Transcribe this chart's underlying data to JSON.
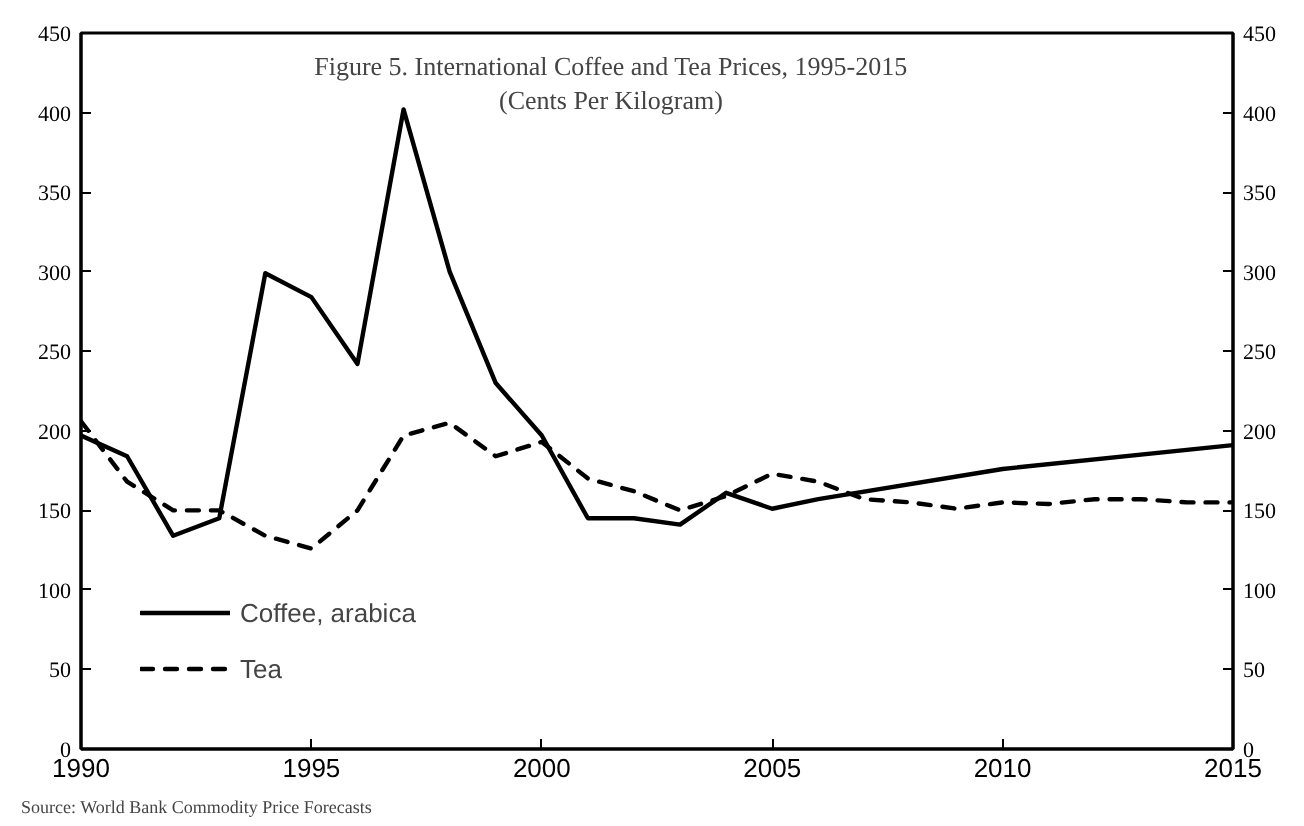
{
  "chart_data": {
    "type": "line",
    "title": "Figure 5. International Coffee and Tea Prices, 1995-2015",
    "subtitle": "(Cents Per Kilogram)",
    "annotations": [
      "Source: World Bank Commodity Price Forecasts"
    ],
    "series": [
      {
        "name": "Coffee, arabica",
        "color": "#000000",
        "line_style": "solid",
        "x": [
          1990,
          1991,
          1992,
          1993,
          1994,
          1995,
          1996,
          1997,
          1998,
          1999,
          2000,
          2001,
          2002,
          2003,
          2004,
          2005,
          2006,
          2010,
          2015
        ],
        "values": [
          197,
          184,
          134,
          145,
          299,
          284,
          242,
          402,
          300,
          230,
          197,
          145,
          145,
          141,
          161,
          151,
          157,
          176,
          191
        ]
      },
      {
        "name": "Tea",
        "color": "#000000",
        "line_style": "dashed",
        "x": [
          1990,
          1991,
          1992,
          1993,
          1994,
          1995,
          1996,
          1997,
          1998,
          1999,
          2000,
          2001,
          2002,
          2003,
          2004,
          2005,
          2006,
          2007,
          2008,
          2009,
          2010,
          2011,
          2012,
          2013,
          2014,
          2015
        ],
        "values": [
          206,
          168,
          150,
          150,
          134,
          126,
          150,
          197,
          205,
          184,
          193,
          170,
          162,
          150,
          159,
          173,
          168,
          157,
          155,
          151,
          155,
          154,
          157,
          157,
          155,
          155
        ]
      }
    ],
    "xlim": [
      1990,
      2015
    ],
    "xticks": [
      1990,
      1995,
      2000,
      2005,
      2010,
      2015
    ],
    "ylim": [
      0,
      450
    ],
    "yticks": [
      0,
      50,
      100,
      150,
      200,
      250,
      300,
      350,
      400,
      450
    ],
    "y2lim": [
      0,
      450
    ],
    "y2ticks": [
      0,
      50,
      100,
      150,
      200,
      250,
      300,
      350,
      400,
      450
    ],
    "grid": false,
    "legend": "bottom left",
    "marker": "none"
  }
}
